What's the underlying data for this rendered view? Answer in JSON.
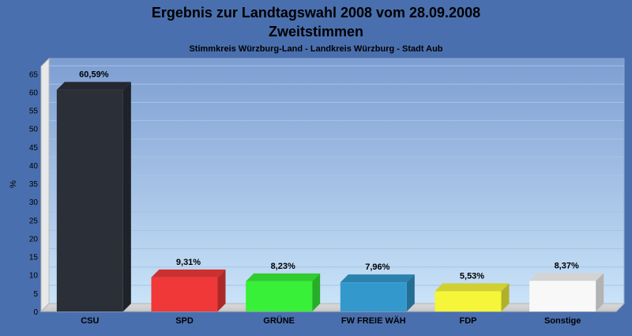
{
  "chart_data": {
    "type": "bar",
    "title": "Ergebnis zur Landtagswahl 2008 vom 28.09.2008",
    "subtitle": "Zweitstimmen",
    "subsubtitle": "Stimmkreis Würzburg-Land - Landkreis Würzburg - Stadt Aub",
    "ylabel": "%",
    "ylim": [
      0,
      67
    ],
    "yticks": [
      0,
      5,
      10,
      15,
      20,
      25,
      30,
      35,
      40,
      45,
      50,
      55,
      60,
      65
    ],
    "categories": [
      "CSU",
      "SPD",
      "GRÜNE",
      "FW FREIE WÄH",
      "FDP",
      "Sonstige"
    ],
    "values": [
      60.59,
      9.31,
      8.23,
      7.96,
      5.53,
      8.37
    ],
    "value_labels": [
      "60,59%",
      "9,31%",
      "8,23%",
      "7,96%",
      "5,53%",
      "8,37%"
    ],
    "colors": [
      "#2b2f38",
      "#f03838",
      "#38f038",
      "#3399cc",
      "#f5f53a",
      "#f8f8f8"
    ],
    "grid": true
  }
}
